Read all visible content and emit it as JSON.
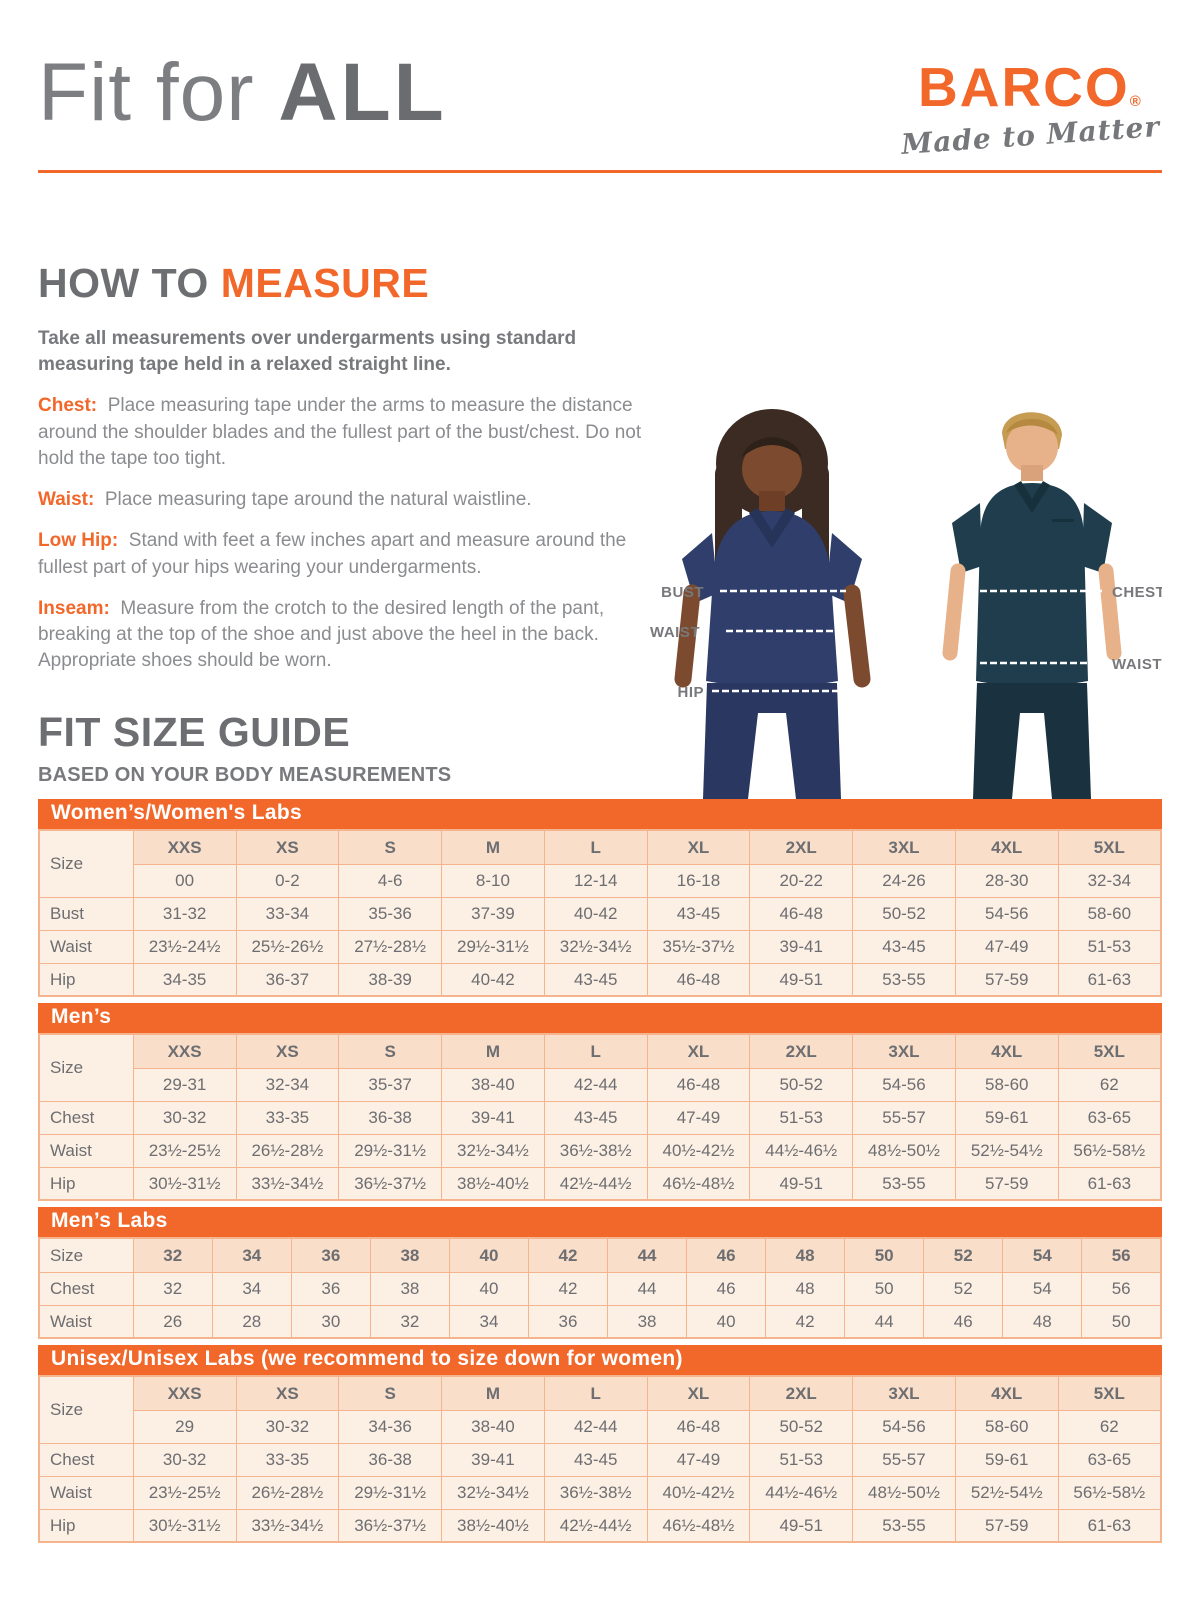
{
  "header": {
    "title_light": "Fit for",
    "title_bold": "ALL",
    "brand": "BARCO",
    "brand_reg": "®",
    "brand_tagline": "Made to Matter"
  },
  "how_to_measure": {
    "title_gray": "HOW TO",
    "title_orange": "MEASURE",
    "intro": "Take all measurements over undergarments using standard measuring tape held in a relaxed straight line.",
    "items": [
      {
        "label": "Chest:",
        "text": "Place measuring tape under the arms to measure the distance around the shoulder blades and the fullest part of the bust/chest. Do not hold the tape too tight."
      },
      {
        "label": "Waist:",
        "text": "Place measuring tape around the natural waistline."
      },
      {
        "label": "Low Hip:",
        "text": "Stand with feet a few inches apart and measure around the fullest part of your hips wearing your undergarments."
      },
      {
        "label": "Inseam:",
        "text": "Measure from the crotch to the desired length of the pant, breaking at the top of the shoe and just above the heel in the back. Appropriate shoes should be worn."
      }
    ]
  },
  "figure": {
    "bust_label": "BUST",
    "waist_left_label": "WAIST",
    "hip_label": "HIP",
    "chest_label": "CHEST",
    "waist_right_label": "WAIST"
  },
  "size_guide": {
    "title": "FIT SIZE GUIDE",
    "subtitle": "BASED ON YOUR BODY MEASUREMENTS",
    "tables": [
      {
        "title": "Women’s/Women's Labs",
        "label_col": "Size",
        "size_headers": [
          "XXS",
          "XS",
          "S",
          "M",
          "L",
          "XL",
          "2XL",
          "3XL",
          "4XL",
          "5XL"
        ],
        "numeric_row": [
          "00",
          "0-2",
          "4-6",
          "8-10",
          "12-14",
          "16-18",
          "20-22",
          "24-26",
          "28-30",
          "32-34"
        ],
        "rows": [
          {
            "label": "Bust",
            "values": [
              "31-32",
              "33-34",
              "35-36",
              "37-39",
              "40-42",
              "43-45",
              "46-48",
              "50-52",
              "54-56",
              "58-60"
            ]
          },
          {
            "label": "Waist",
            "values": [
              "23½-24½",
              "25½-26½",
              "27½-28½",
              "29½-31½",
              "32½-34½",
              "35½-37½",
              "39-41",
              "43-45",
              "47-49",
              "51-53"
            ]
          },
          {
            "label": "Hip",
            "values": [
              "34-35",
              "36-37",
              "38-39",
              "40-42",
              "43-45",
              "46-48",
              "49-51",
              "53-55",
              "57-59",
              "61-63"
            ]
          }
        ]
      },
      {
        "title": "Men’s",
        "label_col": "Size",
        "size_headers": [
          "XXS",
          "XS",
          "S",
          "M",
          "L",
          "XL",
          "2XL",
          "3XL",
          "4XL",
          "5XL"
        ],
        "numeric_row": [
          "29-31",
          "32-34",
          "35-37",
          "38-40",
          "42-44",
          "46-48",
          "50-52",
          "54-56",
          "58-60",
          "62"
        ],
        "rows": [
          {
            "label": "Chest",
            "values": [
              "30-32",
              "33-35",
              "36-38",
              "39-41",
              "43-45",
              "47-49",
              "51-53",
              "55-57",
              "59-61",
              "63-65"
            ]
          },
          {
            "label": "Waist",
            "values": [
              "23½-25½",
              "26½-28½",
              "29½-31½",
              "32½-34½",
              "36½-38½",
              "40½-42½",
              "44½-46½",
              "48½-50½",
              "52½-54½",
              "56½-58½"
            ]
          },
          {
            "label": "Hip",
            "values": [
              "30½-31½",
              "33½-34½",
              "36½-37½",
              "38½-40½",
              "42½-44½",
              "46½-48½",
              "49-51",
              "53-55",
              "57-59",
              "61-63"
            ]
          }
        ]
      },
      {
        "title": "Men’s Labs",
        "label_col": "Size",
        "size_headers": [
          "32",
          "34",
          "36",
          "38",
          "40",
          "42",
          "44",
          "46",
          "48",
          "50",
          "52",
          "54",
          "56"
        ],
        "numeric_row": null,
        "rows": [
          {
            "label": "Chest",
            "values": [
              "32",
              "34",
              "36",
              "38",
              "40",
              "42",
              "44",
              "46",
              "48",
              "50",
              "52",
              "54",
              "56"
            ]
          },
          {
            "label": "Waist",
            "values": [
              "26",
              "28",
              "30",
              "32",
              "34",
              "36",
              "38",
              "40",
              "42",
              "44",
              "46",
              "48",
              "50"
            ]
          }
        ]
      },
      {
        "title": "Unisex/Unisex Labs (we recommend to size down for women)",
        "label_col": "Size",
        "size_headers": [
          "XXS",
          "XS",
          "S",
          "M",
          "L",
          "XL",
          "2XL",
          "3XL",
          "4XL",
          "5XL"
        ],
        "numeric_row": [
          "29",
          "30-32",
          "34-36",
          "38-40",
          "42-44",
          "46-48",
          "50-52",
          "54-56",
          "58-60",
          "62"
        ],
        "rows": [
          {
            "label": "Chest",
            "values": [
              "30-32",
              "33-35",
              "36-38",
              "39-41",
              "43-45",
              "47-49",
              "51-53",
              "55-57",
              "59-61",
              "63-65"
            ]
          },
          {
            "label": "Waist",
            "values": [
              "23½-25½",
              "26½-28½",
              "29½-31½",
              "32½-34½",
              "36½-38½",
              "40½-42½",
              "44½-46½",
              "48½-50½",
              "52½-54½",
              "56½-58½"
            ]
          },
          {
            "label": "Hip",
            "values": [
              "30½-31½",
              "33½-34½",
              "36½-37½",
              "38½-40½",
              "42½-44½",
              "46½-48½",
              "49-51",
              "53-55",
              "57-59",
              "61-63"
            ]
          }
        ]
      }
    ]
  },
  "colors": {
    "accent_orange": "#F2672A",
    "heading_gray": "#6D6E71",
    "body_gray": "#8A8C8F",
    "table_cell_bg": "#FCEFE4",
    "table_header_bg": "#F9DECA",
    "table_border": "#F5B48E",
    "woman_scrub_navy": "#2F3E6B",
    "man_scrub_teal": "#1F3D4C"
  }
}
